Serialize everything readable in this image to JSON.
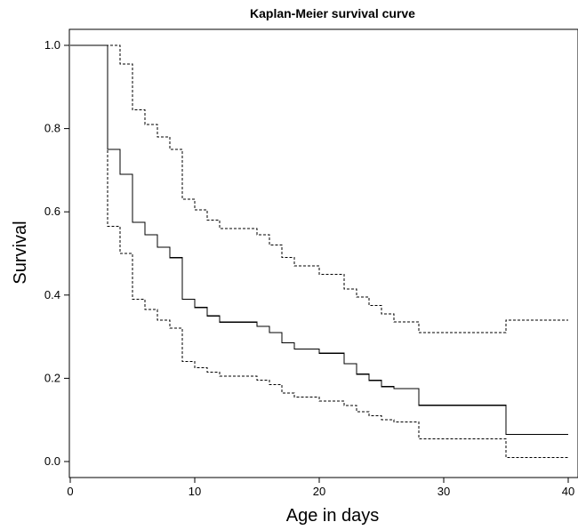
{
  "chart_data": {
    "type": "line",
    "title": "Kaplan-Meier survival curve",
    "xlabel": "Age in days",
    "ylabel": "Survival",
    "xlim": [
      0,
      40
    ],
    "ylim": [
      0,
      1
    ],
    "grid": false,
    "legend": "none",
    "x_ticks": [
      0,
      10,
      20,
      30,
      40
    ],
    "y_ticks": [
      0.0,
      0.2,
      0.4,
      0.6,
      0.8,
      1.0
    ],
    "x_tick_labels": [
      "0",
      "10",
      "20",
      "30",
      "40"
    ],
    "y_tick_labels": [
      "0.0",
      "0.2",
      "0.4",
      "0.6",
      "0.8",
      "1.0"
    ],
    "series": [
      {
        "style": "solid",
        "color": "#000000",
        "step": true,
        "x": [
          0,
          3,
          4,
          5,
          6,
          7,
          8,
          9,
          10,
          11,
          12,
          15,
          16,
          17,
          18,
          20,
          22,
          23,
          24,
          25,
          26,
          28,
          35,
          40
        ],
        "y": [
          1.0,
          0.75,
          0.69,
          0.575,
          0.545,
          0.515,
          0.49,
          0.39,
          0.37,
          0.35,
          0.335,
          0.325,
          0.31,
          0.285,
          0.27,
          0.26,
          0.235,
          0.21,
          0.195,
          0.18,
          0.175,
          0.135,
          0.065,
          0.065
        ]
      },
      {
        "style": "dashed",
        "color": "#000000",
        "step": true,
        "x": [
          0,
          3,
          4,
          5,
          6,
          7,
          8,
          9,
          10,
          11,
          12,
          15,
          16,
          17,
          18,
          20,
          22,
          23,
          24,
          25,
          26,
          28,
          35,
          40
        ],
        "y": [
          1.0,
          1.0,
          0.955,
          0.845,
          0.81,
          0.78,
          0.75,
          0.63,
          0.605,
          0.58,
          0.56,
          0.545,
          0.52,
          0.49,
          0.47,
          0.45,
          0.415,
          0.395,
          0.375,
          0.355,
          0.335,
          0.31,
          0.34,
          0.34
        ]
      },
      {
        "style": "dashed",
        "color": "#000000",
        "step": true,
        "x": [
          0,
          3,
          4,
          5,
          6,
          7,
          8,
          9,
          10,
          11,
          12,
          15,
          16,
          17,
          18,
          20,
          22,
          23,
          24,
          25,
          26,
          28,
          35,
          40
        ],
        "y": [
          1.0,
          0.565,
          0.5,
          0.39,
          0.365,
          0.34,
          0.32,
          0.24,
          0.225,
          0.215,
          0.205,
          0.195,
          0.185,
          0.165,
          0.155,
          0.145,
          0.135,
          0.12,
          0.11,
          0.1,
          0.095,
          0.055,
          0.01,
          0.01
        ]
      }
    ]
  }
}
